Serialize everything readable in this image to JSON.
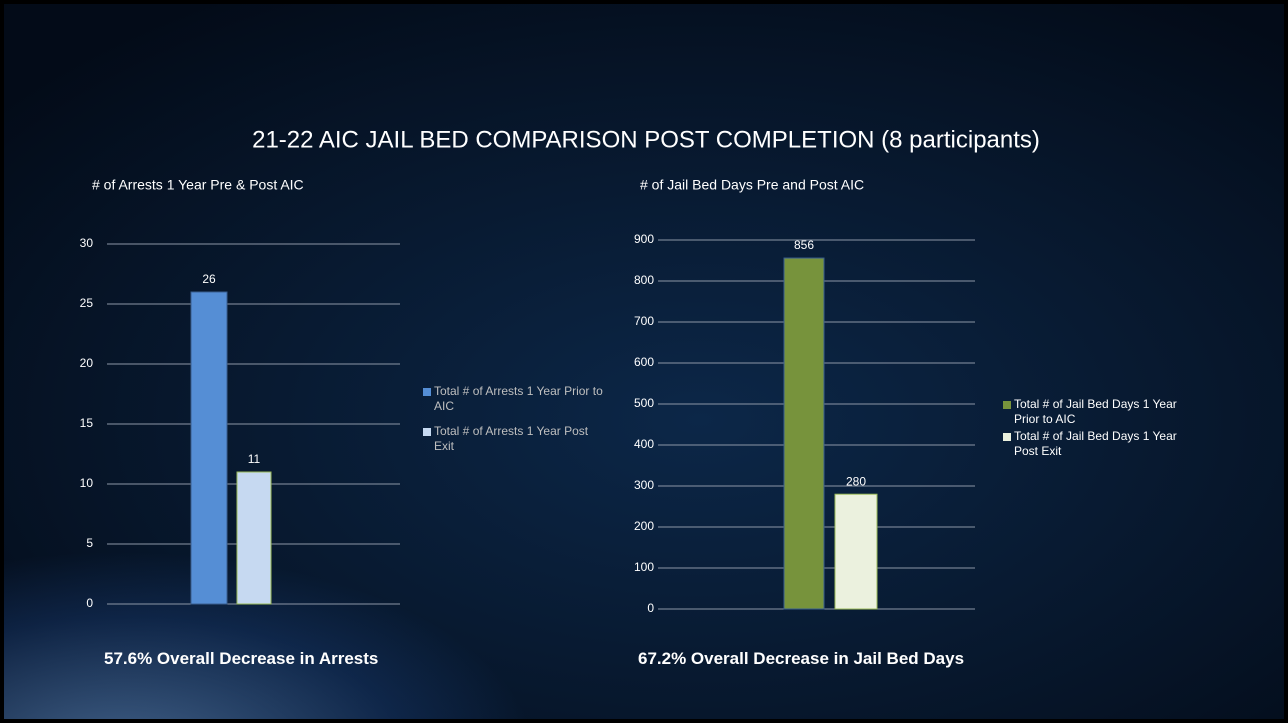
{
  "title": "21-22 AIC JAIL BED COMPARISON POST COMPLETION (8 participants)",
  "chart_data": [
    {
      "type": "bar",
      "title": "# of Arrests 1 Year Pre & Post AIC",
      "categories": [
        null
      ],
      "series": [
        {
          "name": "Total # of Arrests 1 Year Prior to AIC",
          "color": "#558ed5",
          "values": [
            26
          ]
        },
        {
          "name": "Total # of Arrests 1 Year Post Exit",
          "color": "#c6d9f1",
          "values": [
            11
          ]
        }
      ],
      "ylim": [
        0,
        30
      ],
      "yticks": [
        0,
        5,
        10,
        15,
        20,
        25,
        30
      ],
      "grid": true,
      "legend": "right",
      "annotation": "57.6% Overall Decrease in Arrests"
    },
    {
      "type": "bar",
      "title": "# of Jail Bed Days Pre and Post AIC",
      "categories": [
        null
      ],
      "series": [
        {
          "name": "Total # of Jail Bed Days 1 Year Prior to AIC",
          "color": "#77933c",
          "values": [
            856
          ]
        },
        {
          "name": "Total # of Jail Bed Days 1 Year Post Exit",
          "color": "#ebf1de",
          "values": [
            280
          ]
        }
      ],
      "ylim": [
        0,
        900
      ],
      "yticks": [
        0,
        100,
        200,
        300,
        400,
        500,
        600,
        700,
        800,
        900
      ],
      "grid": true,
      "legend": "right",
      "annotation": "67.2% Overall Decrease in Jail Bed Days"
    }
  ]
}
